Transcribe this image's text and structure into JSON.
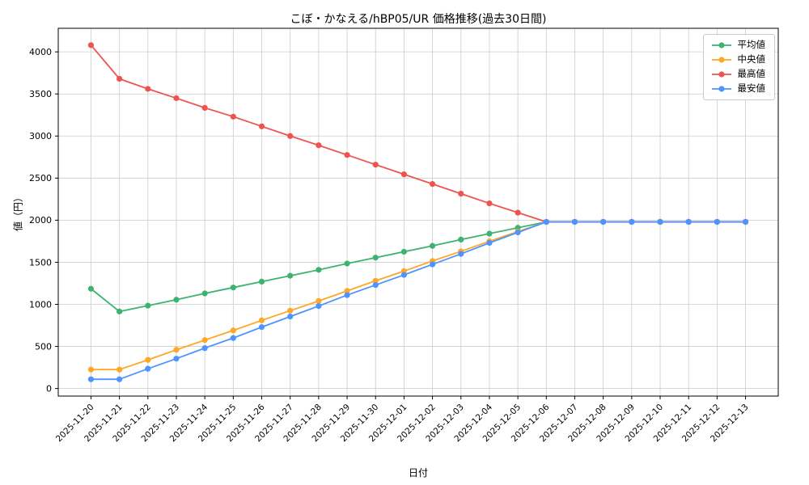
{
  "chart_data": {
    "type": "line",
    "title": "こぼ・かなえる/hBP05/UR 価格推移(過去30日間)",
    "xlabel": "日付",
    "ylabel": "値（円）",
    "grid": true,
    "legend_position": "upper right",
    "yticks": [
      0,
      500,
      1000,
      1500,
      2000,
      2500,
      3000,
      3500,
      4000
    ],
    "ylim": [
      -90,
      4280
    ],
    "xlim": [
      -1.15,
      24.15
    ],
    "categories": [
      "2025-11-20",
      "2025-11-21",
      "2025-11-22",
      "2025-11-23",
      "2025-11-24",
      "2025-11-25",
      "2025-11-26",
      "2025-11-27",
      "2025-11-28",
      "2025-11-29",
      "2025-11-30",
      "2025-12-01",
      "2025-12-02",
      "2025-12-03",
      "2025-12-04",
      "2025-12-05",
      "2025-12-06",
      "2025-12-07",
      "2025-12-08",
      "2025-12-09",
      "2025-12-10",
      "2025-12-11",
      "2025-12-12",
      "2025-12-13"
    ],
    "series": [
      {
        "name": "平均値",
        "color": "#3cb371",
        "values": [
          1185,
          915,
          985,
          1055,
          1130,
          1200,
          1270,
          1340,
          1410,
          1485,
          1555,
          1625,
          1695,
          1770,
          1840,
          1910,
          1980,
          1980,
          1980,
          1980,
          1980,
          1980,
          1980,
          1980
        ]
      },
      {
        "name": "中央値",
        "color": "#ffa726",
        "values": [
          225,
          225,
          340,
          460,
          575,
          690,
          810,
          925,
          1040,
          1160,
          1280,
          1395,
          1515,
          1630,
          1750,
          1865,
          1980,
          1980,
          1980,
          1980,
          1980,
          1980,
          1980,
          1980
        ]
      },
      {
        "name": "最高値",
        "color": "#ef5350",
        "values": [
          4080,
          3680,
          3560,
          3450,
          3335,
          3230,
          3115,
          3000,
          2890,
          2775,
          2660,
          2545,
          2430,
          2315,
          2200,
          2090,
          1980,
          1980,
          1980,
          1980,
          1980,
          1980,
          1980,
          1980
        ]
      },
      {
        "name": "最安値",
        "color": "#4d94ff",
        "values": [
          110,
          110,
          235,
          355,
          480,
          600,
          730,
          855,
          980,
          1110,
          1230,
          1350,
          1475,
          1600,
          1730,
          1855,
          1980,
          1980,
          1980,
          1980,
          1980,
          1980,
          1980,
          1980
        ]
      }
    ]
  }
}
